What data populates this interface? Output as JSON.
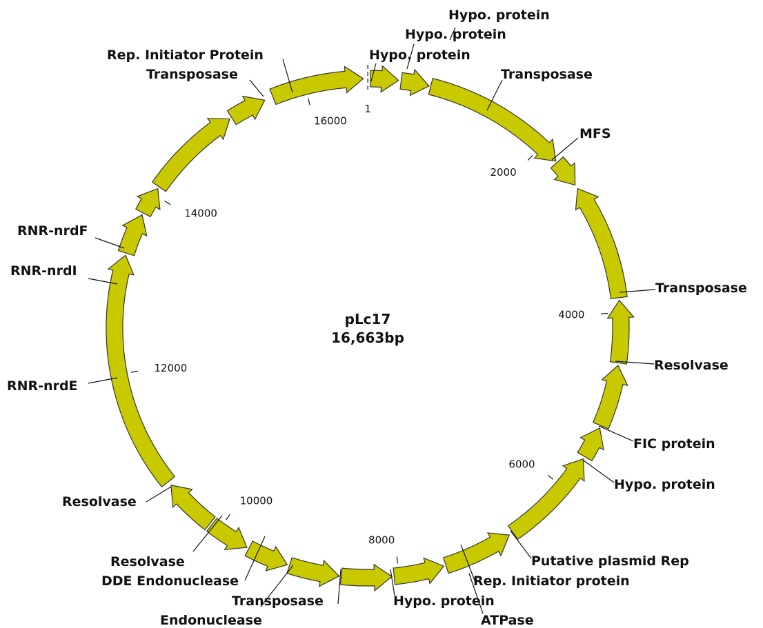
{
  "title": "pLc17",
  "length": {
    "value": 16663,
    "label": "16,663bp"
  },
  "ticks": [
    1,
    2000,
    4000,
    6000,
    8000,
    10000,
    12000,
    14000,
    16000
  ],
  "labels": [
    "Hypo. protein",
    "Hypo. protein",
    "Hypo. protein",
    "Rep. Initiator Protein",
    "Transposase",
    "Transposase",
    "MFS",
    "Transposase",
    "Resolvase",
    "FIC protein",
    "Hypo. protein",
    "Putative plasmid Rep",
    "Rep. Initiator protein",
    "Hypo. protein",
    "ATPase",
    "Transposase",
    "Endonuclease",
    "Resolvase",
    "DDE Endonuclease",
    "Resolvase",
    "RNR-nrdE",
    "RNR-nrdI",
    "RNR-nrdF"
  ]
}
